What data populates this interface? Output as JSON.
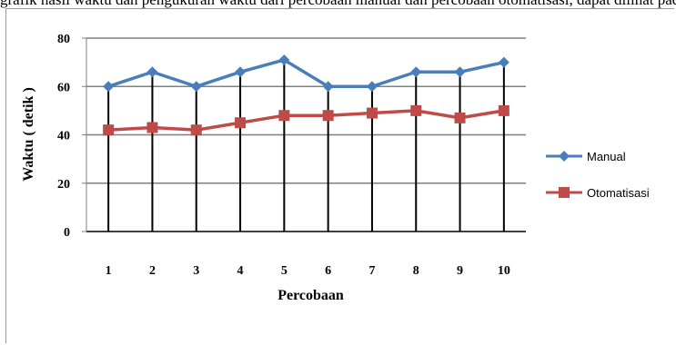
{
  "caption": "grafik hasil waktu dan pengukuran waktu dari percobaan manual dan percobaan otomatisasi, dapat dilihat pada gambar",
  "chart_data": {
    "type": "line",
    "title": "",
    "xlabel": "Percobaan",
    "ylabel": "Waktu ( detik )",
    "categories": [
      "1",
      "2",
      "3",
      "4",
      "5",
      "6",
      "7",
      "8",
      "9",
      "10"
    ],
    "ylim": [
      0,
      80
    ],
    "yticks": [
      "0",
      "20",
      "40",
      "60",
      "80"
    ],
    "grid": true,
    "drop_lines": true,
    "legend_position": "right",
    "series": [
      {
        "name": "Manual",
        "color": "#4A7EBB",
        "marker": "diamond",
        "values": [
          60,
          66,
          60,
          66,
          71,
          60,
          60,
          66,
          66,
          70
        ]
      },
      {
        "name": "Otomatisasi",
        "color": "#BE4B48",
        "marker": "square",
        "values": [
          42,
          43,
          42,
          45,
          48,
          48,
          49,
          50,
          47,
          50
        ]
      }
    ]
  }
}
